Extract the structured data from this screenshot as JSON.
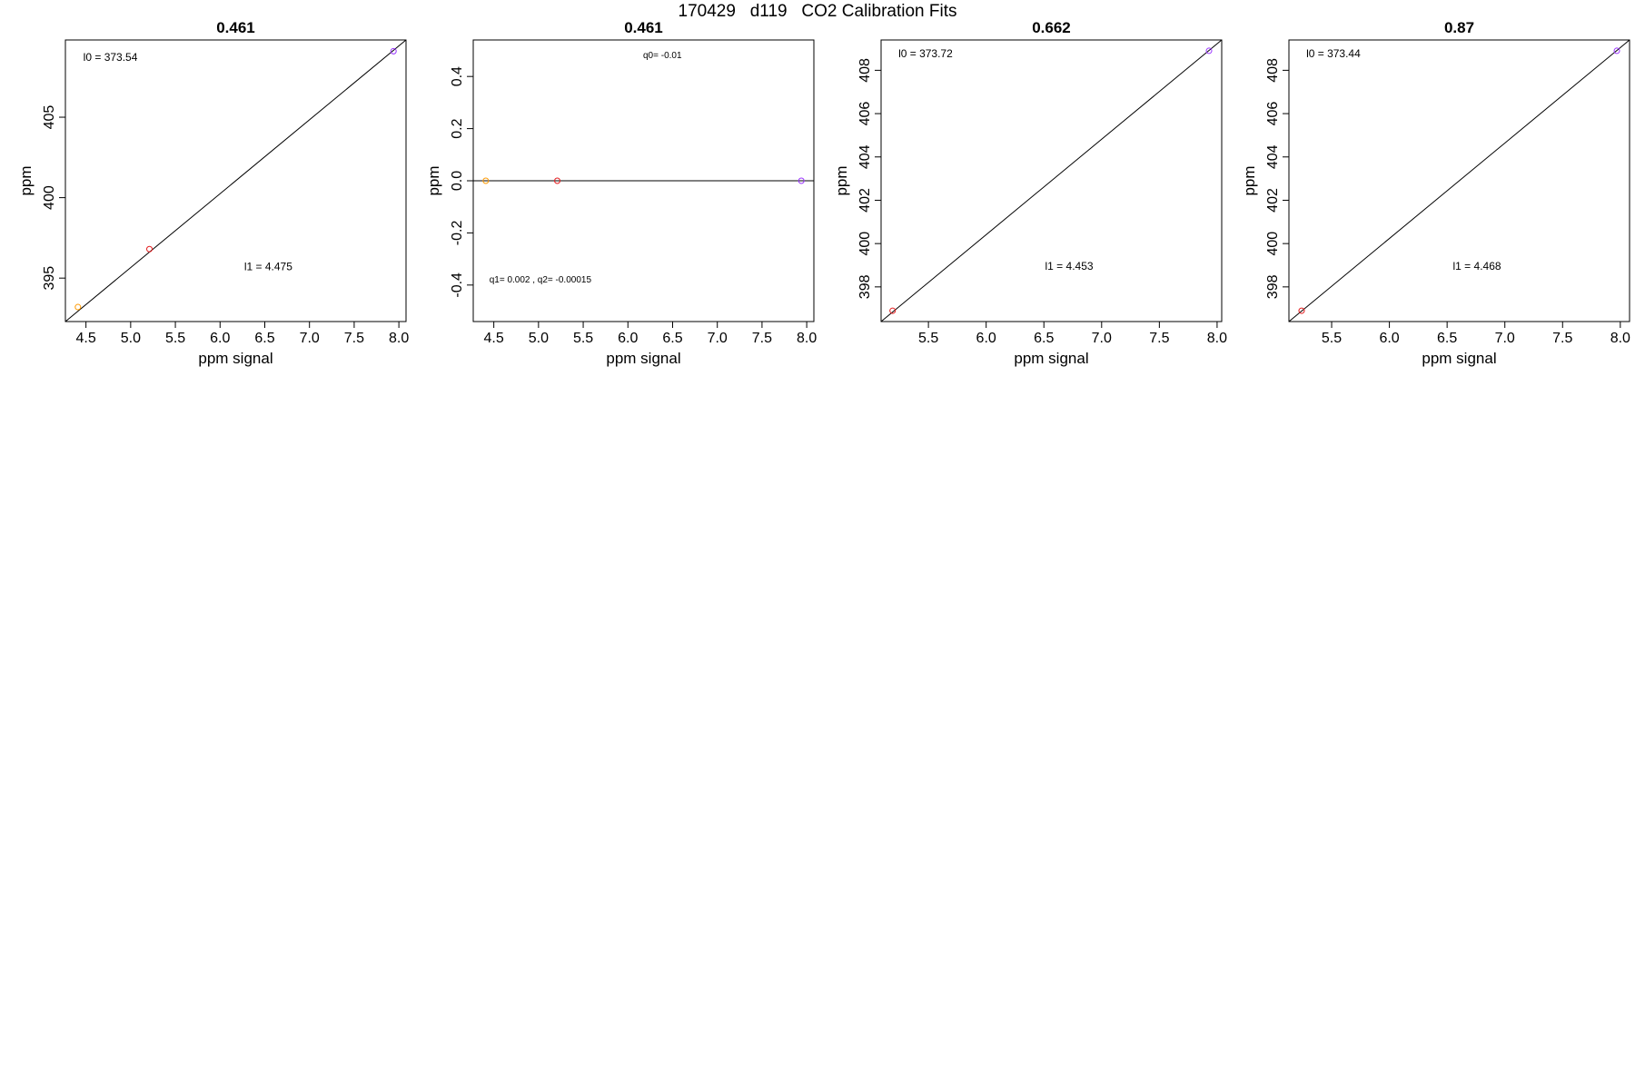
{
  "figure": {
    "title": "170429   d119   CO2 Calibration Fits"
  },
  "chart_data": [
    {
      "type": "scatter",
      "title": "0.461",
      "xlabel": "ppm signal",
      "ylabel": "ppm",
      "xlim": [
        4.27,
        8.08
      ],
      "ylim": [
        392.3,
        409.8
      ],
      "xticks": [
        4.5,
        5.0,
        5.5,
        6.0,
        6.5,
        7.0,
        7.5,
        8.0
      ],
      "yticks": [
        395,
        400,
        405
      ],
      "points": [
        {
          "x": 4.41,
          "y": 393.2,
          "color": "#ff9900"
        },
        {
          "x": 5.21,
          "y": 396.8,
          "color": "#e31a1c"
        },
        {
          "x": 7.94,
          "y": 409.1,
          "color": "#9933ff"
        }
      ],
      "fit_line": {
        "x": [
          4.27,
          8.08
        ],
        "y": [
          392.3,
          409.8
        ]
      },
      "annotations": [
        {
          "text": "l0 =  373.54",
          "x": 4.47,
          "y": 408.5
        },
        {
          "text": "l1 =  4.475",
          "x": 6.27,
          "y": 395.5
        }
      ],
      "grid": false,
      "legend": "none"
    },
    {
      "type": "scatter",
      "title": "0.461",
      "xlabel": "ppm signal",
      "ylabel": "ppm",
      "xlim": [
        4.27,
        8.08
      ],
      "ylim": [
        -0.54,
        0.54
      ],
      "xticks": [
        4.5,
        5.0,
        5.5,
        6.0,
        6.5,
        7.0,
        7.5,
        8.0
      ],
      "yticks": [
        -0.4,
        -0.2,
        0.0,
        0.2,
        0.4
      ],
      "points": [
        {
          "x": 4.41,
          "y": 0.0,
          "color": "#ff9900"
        },
        {
          "x": 5.21,
          "y": 0.0,
          "color": "#e31a1c"
        },
        {
          "x": 7.94,
          "y": 0.0,
          "color": "#9933ff"
        }
      ],
      "fit_line": {
        "x": [
          4.27,
          8.08
        ],
        "y": [
          0.0,
          0.0
        ]
      },
      "annotations": [
        {
          "text": "q0= -0.01",
          "x": 6.17,
          "y": 0.47
        },
        {
          "text": "q1= 0.002 , q2= -0.00015",
          "x": 4.45,
          "y": -0.39
        }
      ],
      "grid": false,
      "legend": "none"
    },
    {
      "type": "scatter",
      "title": "0.662",
      "xlabel": "ppm signal",
      "ylabel": "ppm",
      "xlim": [
        5.09,
        8.04
      ],
      "ylim": [
        396.4,
        409.4
      ],
      "xticks": [
        5.5,
        6.0,
        6.5,
        7.0,
        7.5,
        8.0
      ],
      "yticks": [
        398,
        400,
        402,
        404,
        406,
        408
      ],
      "points": [
        {
          "x": 5.19,
          "y": 396.9,
          "color": "#e31a1c"
        },
        {
          "x": 7.93,
          "y": 408.9,
          "color": "#9933ff"
        }
      ],
      "fit_line": {
        "x": [
          5.09,
          8.04
        ],
        "y": [
          396.4,
          409.4
        ]
      },
      "annotations": [
        {
          "text": "l0 =  373.72",
          "x": 5.24,
          "y": 408.6
        },
        {
          "text": "l1 =  4.453",
          "x": 6.51,
          "y": 398.8
        }
      ],
      "grid": false,
      "legend": "none"
    },
    {
      "type": "scatter",
      "title": "0.87",
      "xlabel": "ppm signal",
      "ylabel": "ppm",
      "xlim": [
        5.13,
        8.08
      ],
      "ylim": [
        396.4,
        409.4
      ],
      "xticks": [
        5.5,
        6.0,
        6.5,
        7.0,
        7.5,
        8.0
      ],
      "yticks": [
        398,
        400,
        402,
        404,
        406,
        408
      ],
      "points": [
        {
          "x": 5.24,
          "y": 396.9,
          "color": "#e31a1c"
        },
        {
          "x": 7.97,
          "y": 408.9,
          "color": "#9933ff"
        }
      ],
      "fit_line": {
        "x": [
          5.13,
          8.08
        ],
        "y": [
          396.4,
          409.4
        ]
      },
      "annotations": [
        {
          "text": "l0 =  373.44",
          "x": 5.28,
          "y": 408.6
        },
        {
          "text": "l1 =  4.468",
          "x": 6.55,
          "y": 398.8
        }
      ],
      "grid": false,
      "legend": "none"
    }
  ]
}
